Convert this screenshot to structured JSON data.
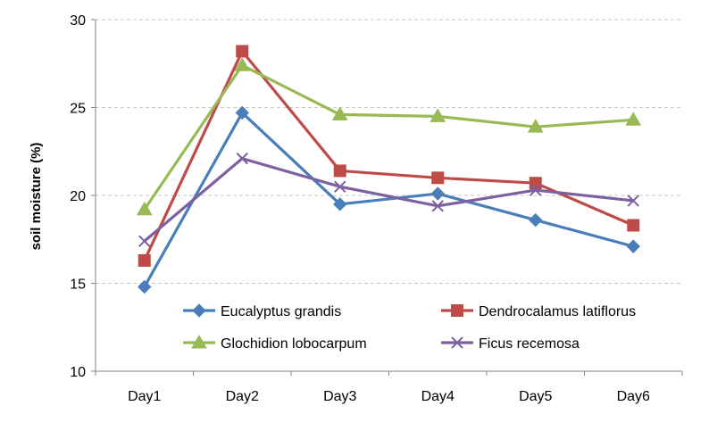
{
  "chart_data": {
    "type": "line",
    "categories": [
      "Day1",
      "Day2",
      "Day3",
      "Day4",
      "Day5",
      "Day6"
    ],
    "series": [
      {
        "name": "Eucalyptus grandis",
        "values": [
          14.8,
          24.7,
          19.5,
          20.1,
          18.6,
          17.1
        ],
        "color": "#4a7ebb",
        "marker": "diamond"
      },
      {
        "name": "Dendrocalamus latiflorus",
        "values": [
          16.3,
          28.2,
          21.4,
          21.0,
          20.7,
          18.3
        ],
        "color": "#be4b48",
        "marker": "square"
      },
      {
        "name": "Glochidion lobocarpum",
        "values": [
          19.2,
          27.4,
          24.6,
          24.5,
          23.9,
          24.3
        ],
        "color": "#98b954",
        "marker": "triangle"
      },
      {
        "name": "Ficus recemosa",
        "values": [
          17.4,
          22.1,
          20.5,
          19.4,
          20.3,
          19.7
        ],
        "color": "#7d60a0",
        "marker": "x"
      }
    ],
    "xlabel": "",
    "ylabel": "soil moisture (%)",
    "ylim": [
      10,
      30
    ],
    "yticks": [
      "10",
      "15",
      "20",
      "25",
      "30"
    ],
    "grid": "horizontal-dashed",
    "legend_position": "bottom-inside"
  }
}
